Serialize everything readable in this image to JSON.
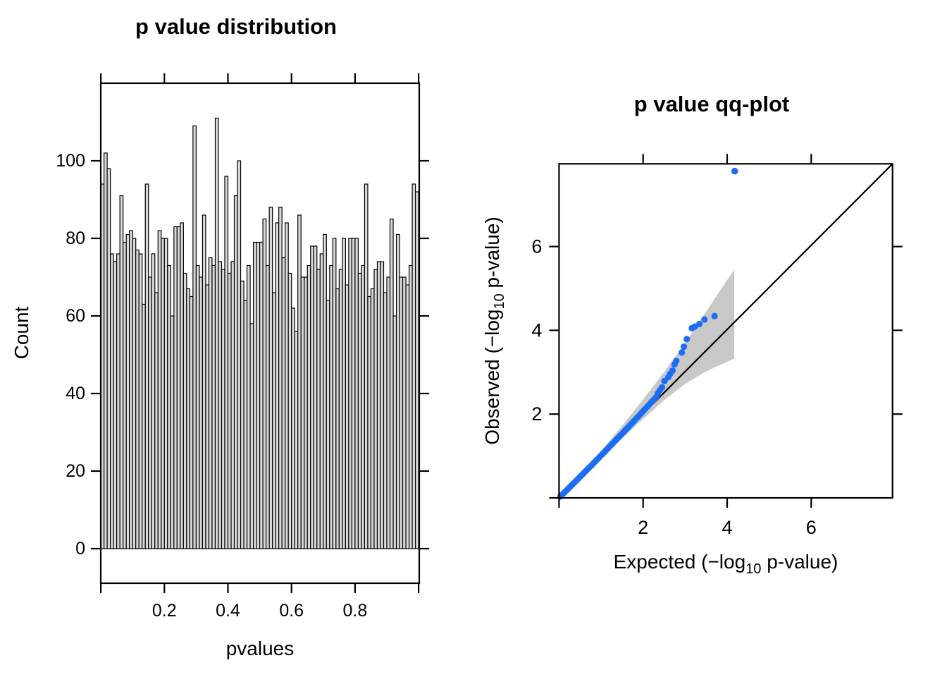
{
  "colors": {
    "background": "#FFFFFF",
    "axis": "#000000",
    "bar_fill": "#D9D9D9",
    "bar_stroke": "#000000",
    "point_blue": "#1B6EF3",
    "band_gray": "#C8C8C8",
    "identity_line": "#000000"
  },
  "chart_data": [
    {
      "id": "histogram",
      "type": "histogram",
      "title": "p value distribution",
      "xlabel": "pvalues",
      "ylabel": "Count",
      "bin_start": 0,
      "bin_width": 0.01,
      "counts": [
        94,
        102,
        98,
        76,
        74,
        76,
        91,
        79,
        81,
        82,
        80,
        77,
        76,
        63,
        94,
        70,
        76,
        66,
        82,
        80,
        80,
        73,
        60,
        83,
        83,
        84,
        71,
        67,
        65,
        109,
        73,
        70,
        86,
        68,
        75,
        73,
        111,
        74,
        72,
        96,
        71,
        74,
        91,
        100,
        69,
        64,
        73,
        58,
        79,
        79,
        79,
        85,
        73,
        88,
        66,
        84,
        88,
        75,
        84,
        71,
        62,
        56,
        86,
        70,
        70,
        73,
        78,
        78,
        72,
        76,
        81,
        64,
        73,
        80,
        67,
        72,
        80,
        68,
        80,
        80,
        80,
        71,
        73,
        94,
        65,
        67,
        72,
        74,
        74,
        66,
        70,
        85,
        60,
        81,
        70,
        70,
        68,
        73,
        94,
        92
      ],
      "xlim": [
        0,
        1.0
      ],
      "ylim": [
        -9.5,
        119.8
      ],
      "x_ticks": [
        0,
        0.2,
        0.4,
        0.6,
        0.8,
        1.0
      ],
      "x_tick_labels": [
        "",
        "0.2",
        "0.4",
        "0.6",
        "0.8",
        ""
      ],
      "y_ticks": [
        0,
        20,
        40,
        60,
        80,
        100
      ],
      "y_tick_labels": [
        "0",
        "20",
        "40",
        "60",
        "80",
        "100"
      ],
      "grid": false
    },
    {
      "id": "qqplot",
      "type": "scatter",
      "title": "p value qq-plot",
      "xlabel_parts": {
        "pre": "Expected (−log",
        "sub": "10",
        "post": " p-value)"
      },
      "ylabel_parts": {
        "pre": "Observed (−log",
        "sub": "10",
        "post": " p-value)"
      },
      "xlim": [
        0,
        7.93
      ],
      "ylim": [
        0,
        7.97
      ],
      "x_ticks": [
        2,
        4,
        6
      ],
      "y_ticks": [
        2,
        4,
        6
      ],
      "x_tick_labels": [
        "2",
        "4",
        "6"
      ],
      "y_tick_labels": [
        "2",
        "4",
        "6"
      ],
      "identity_line": {
        "from": [
          0,
          0
        ],
        "to": [
          7.93,
          7.97
        ]
      },
      "confidence_band": {
        "upper": [
          [
            0,
            0
          ],
          [
            0.5,
            0.55
          ],
          [
            1,
            1.12
          ],
          [
            1.5,
            1.72
          ],
          [
            2,
            2.35
          ],
          [
            2.5,
            3.0
          ],
          [
            3,
            3.7
          ],
          [
            3.5,
            4.45
          ],
          [
            3.9,
            5.05
          ],
          [
            4.17,
            5.45
          ]
        ],
        "lower": [
          [
            0,
            0
          ],
          [
            0.5,
            0.46
          ],
          [
            1,
            0.94
          ],
          [
            1.5,
            1.42
          ],
          [
            2,
            1.88
          ],
          [
            2.5,
            2.33
          ],
          [
            3,
            2.72
          ],
          [
            3.5,
            3.02
          ],
          [
            4.17,
            3.33
          ]
        ]
      },
      "dense_streak": {
        "note": "hundreds of overlapping points lying along the identity line",
        "x_start": 0.03,
        "x_end": 2.32,
        "n_points": 85,
        "max_y_offset": 0.1
      },
      "tail_points": [
        [
          2.35,
          2.5
        ],
        [
          2.4,
          2.57
        ],
        [
          2.45,
          2.64
        ],
        [
          2.51,
          2.79
        ],
        [
          2.6,
          2.88
        ],
        [
          2.64,
          2.96
        ],
        [
          2.7,
          3.04
        ],
        [
          2.75,
          3.19
        ],
        [
          2.79,
          3.27
        ],
        [
          2.92,
          3.47
        ],
        [
          2.97,
          3.61
        ],
        [
          3.04,
          3.79
        ],
        [
          3.16,
          4.05
        ],
        [
          3.23,
          4.09
        ],
        [
          3.34,
          4.15
        ],
        [
          3.46,
          4.26
        ],
        [
          3.7,
          4.34
        ]
      ],
      "outlier_point": [
        4.18,
        7.8
      ],
      "grid": false,
      "legend": null
    }
  ]
}
